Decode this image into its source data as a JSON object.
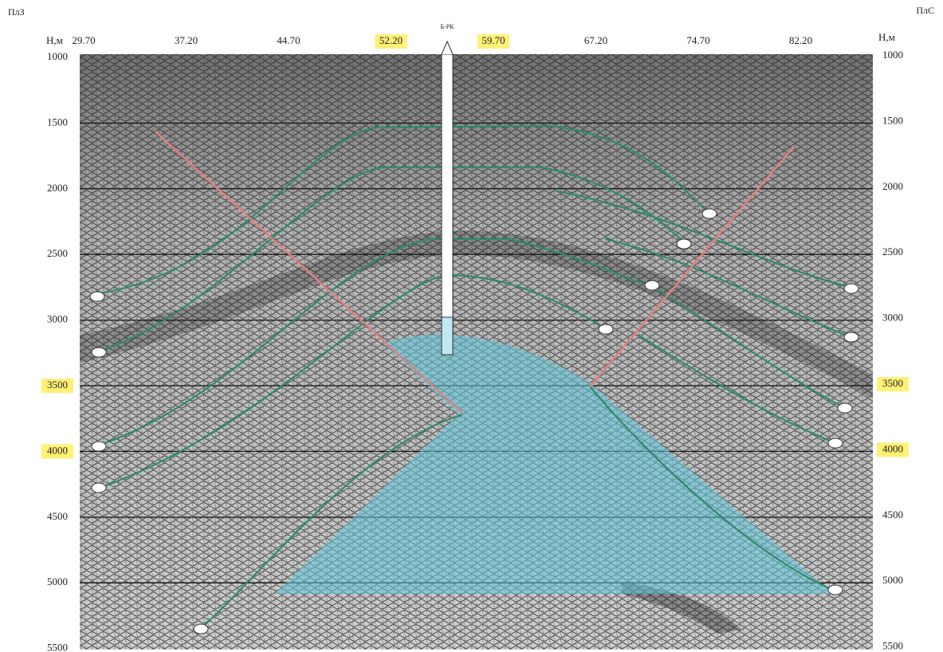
{
  "header": {
    "left": "ПлЗ",
    "right": "ПлС"
  },
  "top_axis": {
    "label_left": "Н,м",
    "label_right": "Н,м",
    "ticks": [
      "29.70",
      "37.20",
      "44.70",
      "52.20",
      "59.70",
      "67.20",
      "74.70",
      "82.20"
    ],
    "highlight": [
      false,
      false,
      false,
      true,
      true,
      false,
      false,
      false
    ]
  },
  "well_label": "Б-РК",
  "depth_axis": {
    "ticks": [
      1000,
      1500,
      2000,
      2500,
      3000,
      3500,
      4000,
      4500,
      5000,
      5500
    ],
    "highlight": [
      false,
      false,
      false,
      false,
      false,
      true,
      true,
      false,
      false,
      false
    ]
  }
}
